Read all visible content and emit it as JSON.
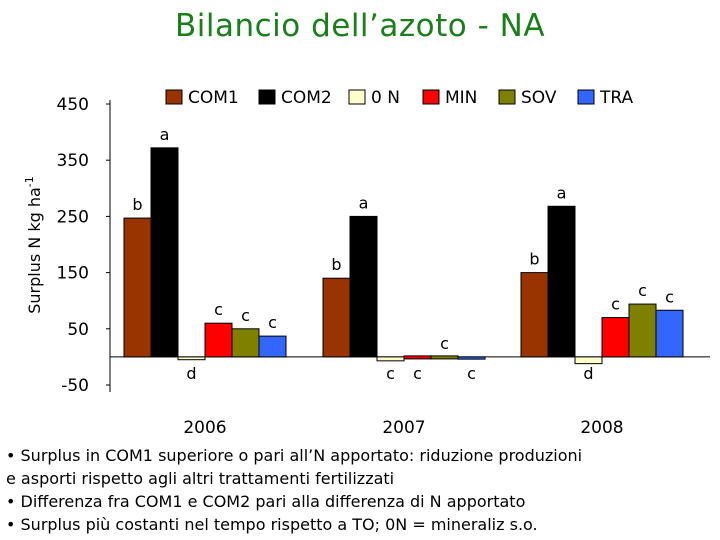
{
  "title": "Bilancio dell’azoto - NA",
  "chart_data": {
    "type": "bar",
    "ylabel": "Surplus N  kg ha",
    "ylabel_sup": "-1",
    "ylim": [
      -50,
      450
    ],
    "y_ticks": [
      "450",
      "350",
      "250",
      "150",
      "50",
      "-50"
    ],
    "y_tick_values": [
      450,
      350,
      250,
      150,
      50,
      -50
    ],
    "categories": [
      "2006",
      "2007",
      "2008"
    ],
    "legend_position": "top",
    "series": [
      {
        "name": "COM1",
        "color": "#993300",
        "values": [
          247,
          140,
          150
        ],
        "labels": [
          "b",
          "b",
          "b"
        ]
      },
      {
        "name": "COM2",
        "color": "#000000",
        "values": [
          372,
          250,
          268
        ],
        "labels": [
          "a",
          "a",
          "a"
        ]
      },
      {
        "name": "0 N",
        "color": "#ffffcc",
        "values": [
          -5,
          -7,
          -12
        ],
        "labels": [
          "d",
          "c",
          "d"
        ]
      },
      {
        "name": "MIN",
        "color": "#ff0000",
        "values": [
          60,
          -2,
          70
        ],
        "labels": [
          "c",
          "c",
          "c"
        ]
      },
      {
        "name": "SOV",
        "color": "#808000",
        "values": [
          50,
          0,
          94
        ],
        "labels": [
          "c",
          "c",
          "c"
        ]
      },
      {
        "name": "TRA",
        "color": "#3366ff",
        "values": [
          37,
          -4,
          83
        ],
        "labels": [
          "c",
          "c",
          "c"
        ]
      }
    ]
  },
  "notes": [
    "• Surplus in COM1 superiore o pari all’N apportato: riduzione produzioni",
    "e asporti rispetto agli altri trattamenti fertilizzati",
    "• Differenza fra COM1 e COM2 pari alla differenza di N apportato",
    "• Surplus più costanti nel tempo rispetto a TO; 0N = mineraliz s.o."
  ]
}
